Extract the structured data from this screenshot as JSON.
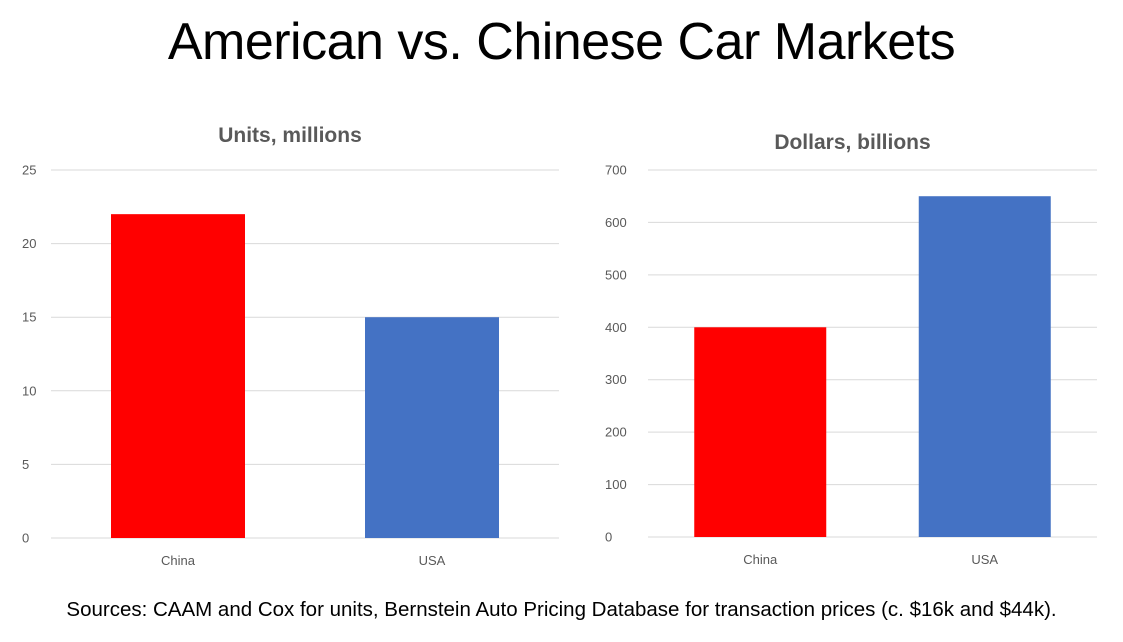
{
  "slide": {
    "title": "American vs. Chinese Car Markets",
    "sources": "Sources: CAAM and Cox for units, Bernstein Auto Pricing Database for transaction prices (c. $16k and $44k)."
  },
  "chart_data": [
    {
      "type": "bar",
      "title": "Units, millions",
      "categories": [
        "China",
        "USA"
      ],
      "values": [
        22,
        15
      ],
      "colors": [
        "#ff0000",
        "#4472c4"
      ],
      "ylim": [
        0,
        25
      ],
      "yticks": [
        0,
        5,
        10,
        15,
        20,
        25
      ],
      "grid": true,
      "legend": "none"
    },
    {
      "type": "bar",
      "title": "Dollars, billions",
      "categories": [
        "China",
        "USA"
      ],
      "values": [
        400,
        650
      ],
      "colors": [
        "#ff0000",
        "#4472c4"
      ],
      "ylim": [
        0,
        700
      ],
      "yticks": [
        0,
        100,
        200,
        300,
        400,
        500,
        600,
        700
      ],
      "grid": true,
      "legend": "none"
    }
  ]
}
